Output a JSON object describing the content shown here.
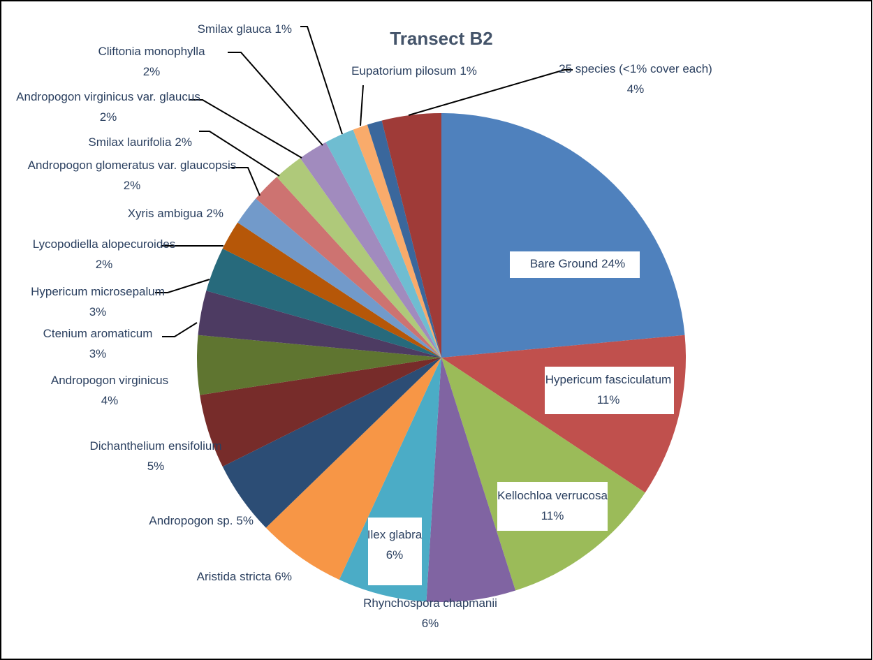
{
  "chart_data": {
    "type": "pie",
    "title": "Transect B2",
    "categories": [
      "Bare Ground",
      "Hypericum fasciculatum",
      "Kellochloa verrucosa",
      "Rhynchospora chapmanii",
      "Ilex glabra",
      "Aristida stricta",
      "Andropogon sp.",
      "Dichanthelium ensifolium",
      "Andropogon virginicus",
      "Ctenium aromaticum",
      "Hypericum microsepalum",
      "Lycopodiella alopecuroides",
      "Xyris ambigua",
      "Andropogon glomeratus var. glaucopsis",
      "Smilax laurifolia",
      "Andropogon virginicus var. glaucus",
      "Cliftonia monophylla",
      "Smilax glauca",
      "Eupatorium pilosum",
      "25 species (<1% cover each)"
    ],
    "values": [
      24,
      11,
      11,
      6,
      6,
      6,
      5,
      5,
      4,
      3,
      3,
      2,
      2,
      2,
      2,
      2,
      2,
      1,
      1,
      4
    ],
    "value_labels": [
      "24%",
      "11%",
      "11%",
      "6%",
      "6%",
      "6%",
      "5%",
      "5%",
      "4%",
      "3%",
      "3%",
      "2%",
      "2%",
      "2%",
      "2%",
      "2%",
      "2%",
      "1%",
      "1%",
      "4%"
    ],
    "colors": [
      "#4F81BD",
      "#C0504D",
      "#9BBB59",
      "#8064A2",
      "#4BACC6",
      "#F79646",
      "#2C4D75",
      "#772C2A",
      "#5F7530",
      "#4D3B62",
      "#276A7C",
      "#B65708",
      "#729ACA",
      "#CD7371",
      "#AFC97A",
      "#A18BBE",
      "#6FBDD1",
      "#F9AB6B",
      "#3A679C",
      "#9F3B38"
    ]
  }
}
